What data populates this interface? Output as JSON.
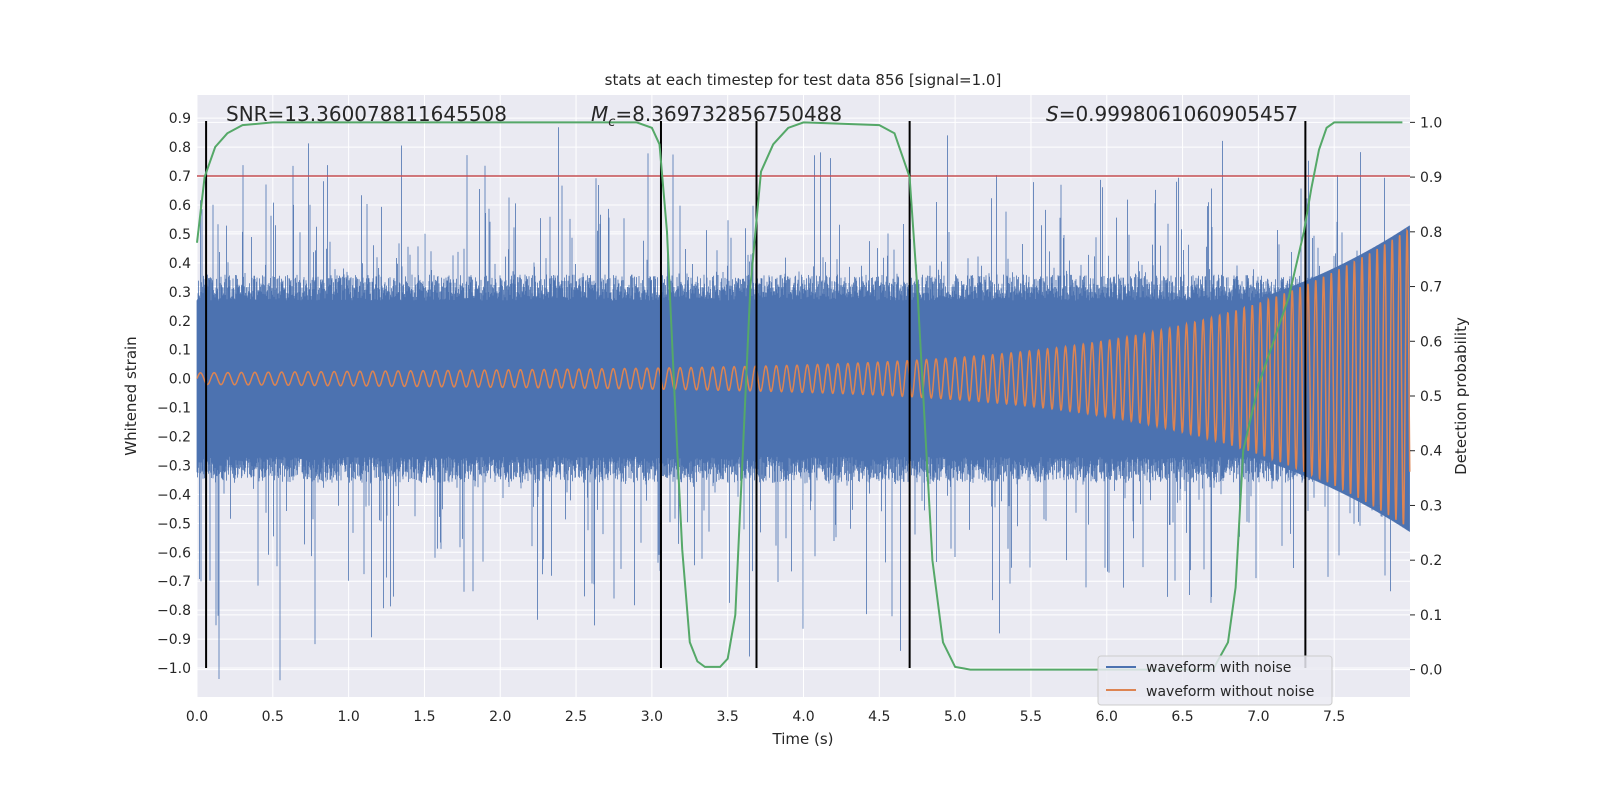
{
  "chart_data": {
    "type": "line",
    "title": "stats at each timestep for test data 856 [signal=1.0]",
    "xlabel": "Time (s)",
    "ylabel": "Whitened strain",
    "ylabel_right": "Detection probability",
    "xlim": [
      0,
      8.0
    ],
    "ylim": [
      -1.1,
      0.98
    ],
    "ylim_right": [
      -0.05,
      1.05
    ],
    "xticks": [
      "0.0",
      "0.5",
      "1.0",
      "1.5",
      "2.0",
      "2.5",
      "3.0",
      "3.5",
      "4.0",
      "4.5",
      "5.0",
      "5.5",
      "6.0",
      "6.5",
      "7.0",
      "7.5"
    ],
    "yticks": [
      "0.9",
      "0.8",
      "0.7",
      "0.6",
      "0.5",
      "0.4",
      "0.3",
      "0.2",
      "0.1",
      "0.0",
      "−0.1",
      "−0.2",
      "−0.3",
      "−0.4",
      "−0.5",
      "−0.6",
      "−0.7",
      "−0.8",
      "−0.9",
      "−1.0"
    ],
    "yticks_right": [
      "1.0",
      "0.9",
      "0.8",
      "0.7",
      "0.6",
      "0.5",
      "0.4",
      "0.3",
      "0.2",
      "0.1",
      "0.0"
    ],
    "annotations": {
      "snr": "SNR=13.360078811645508",
      "mc_symbol": "M",
      "mc_sub": "c",
      "mc_value": "=8.369732856750488",
      "s_symbol": "S",
      "s_value": "=0.9998061060905457"
    },
    "legend": {
      "placement": "lower-right",
      "entries": [
        "waveform with noise",
        "waveform without noise"
      ]
    },
    "series": [
      {
        "name": "waveform with noise",
        "color": "#4c72b0",
        "kind": "noise",
        "base_amplitude": 0.3,
        "max_spike": 0.85
      },
      {
        "name": "waveform without noise",
        "color": "#dd8452",
        "kind": "chirp",
        "start_amplitude": 0.02,
        "end_amplitude": 0.48
      },
      {
        "name": "detection probability",
        "color": "#55a868",
        "axis": "right",
        "x": [
          0,
          0.05,
          0.12,
          0.2,
          0.3,
          0.5,
          2.9,
          3.0,
          3.05,
          3.1,
          3.15,
          3.2,
          3.25,
          3.3,
          3.35,
          3.45,
          3.5,
          3.55,
          3.6,
          3.65,
          3.72,
          3.8,
          3.9,
          4.0,
          4.5,
          4.6,
          4.7,
          4.75,
          4.8,
          4.85,
          4.92,
          5.0,
          5.1,
          6.7,
          6.8,
          6.85,
          6.9,
          7.0,
          7.1,
          7.2,
          7.3,
          7.35,
          7.4,
          7.45,
          7.5,
          7.95
        ],
        "y": [
          0.78,
          0.9,
          0.955,
          0.98,
          0.995,
          1,
          1,
          0.99,
          0.96,
          0.8,
          0.5,
          0.22,
          0.05,
          0.015,
          0.005,
          0.005,
          0.02,
          0.1,
          0.4,
          0.7,
          0.91,
          0.96,
          0.99,
          1,
          0.995,
          0.98,
          0.9,
          0.7,
          0.45,
          0.2,
          0.05,
          0.005,
          0,
          0,
          0.05,
          0.15,
          0.4,
          0.52,
          0.6,
          0.68,
          0.8,
          0.88,
          0.95,
          0.99,
          1,
          1
        ]
      }
    ],
    "threshold": {
      "value": 0.7,
      "color": "#c44e52"
    },
    "vlines": {
      "x": [
        0.06,
        3.06,
        3.69,
        4.7,
        7.31
      ],
      "ymin": -1.0,
      "ymax": 0.89,
      "color": "#000000"
    }
  }
}
